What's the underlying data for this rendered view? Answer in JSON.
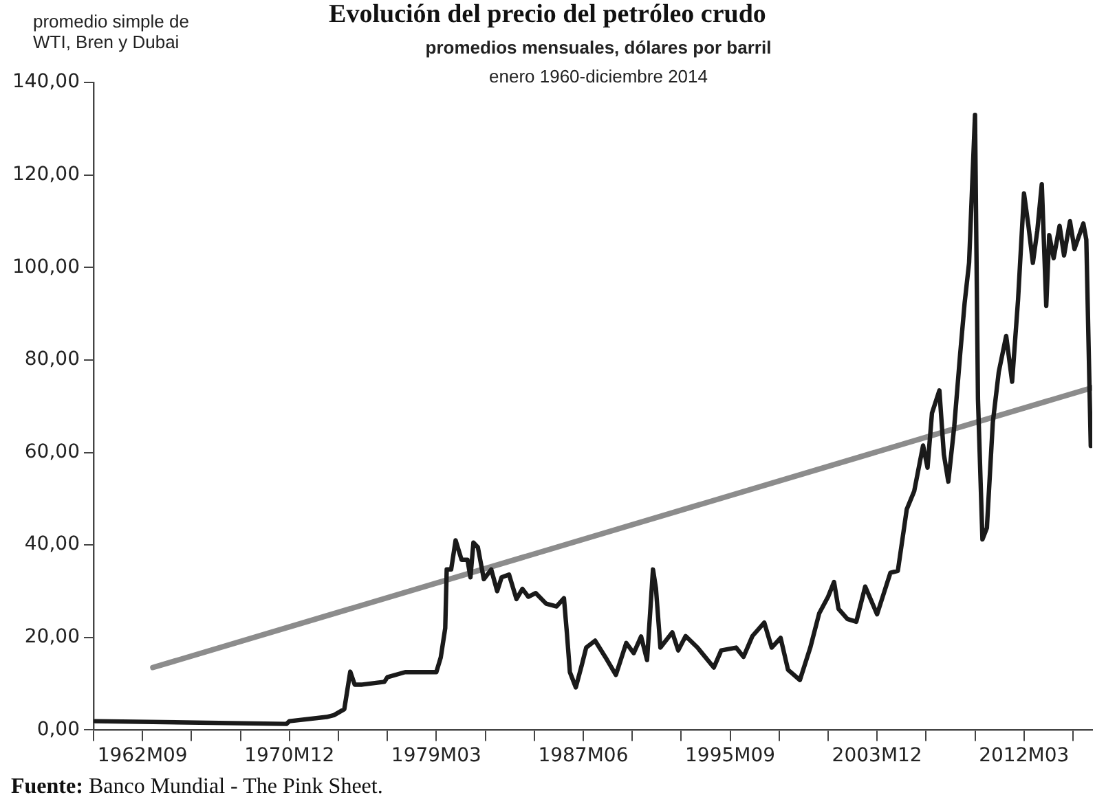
{
  "chart_data": {
    "type": "line",
    "title": "Evolución del precio del petróleo crudo",
    "subtitle": "promedios mensuales, dólares por barril\nenero 1960-diciembre 2014",
    "ylabel": "promedio simple de\nWTI, Bren y Dubai",
    "annotations": [
      "Fuente: Banco Mundial - The Pink Sheet."
    ],
    "series": [
      {
        "color": "#1a1a1a",
        "x": [
          "1960-01",
          "1970-10",
          "1970-12",
          "1973-01",
          "1973-06",
          "1974-01",
          "1974-05",
          "1974-08",
          "1975-01",
          "1976-04",
          "1976-06",
          "1977-06",
          "1979-03",
          "1979-06",
          "1979-09",
          "1979-10",
          "1980-01",
          "1980-04",
          "1980-08",
          "1980-12",
          "1981-02",
          "1981-04",
          "1981-07",
          "1981-11",
          "1982-04",
          "1982-08",
          "1982-11",
          "1983-04",
          "1983-09",
          "1984-01",
          "1984-05",
          "1984-10",
          "1985-05",
          "1985-12",
          "1986-05",
          "1986-07",
          "1986-09",
          "1987-01",
          "1987-05",
          "1987-08",
          "1988-02",
          "1988-09",
          "1989-04",
          "1989-11",
          "1990-04",
          "1990-09",
          "1991-01",
          "1991-05",
          "1991-07",
          "1991-10",
          "1992-06",
          "1992-10",
          "1993-03",
          "1993-11",
          "1994-10",
          "1995-03",
          "1996-01",
          "1996-06",
          "1996-12",
          "1997-08",
          "1998-01",
          "1998-07",
          "1998-12",
          "1999-08",
          "2000-03",
          "2000-09",
          "2001-03",
          "2001-07",
          "2001-10",
          "2002-04",
          "2002-10",
          "2003-04",
          "2003-12",
          "2004-09",
          "2005-02",
          "2005-08",
          "2006-01",
          "2006-07",
          "2006-10",
          "2007-01",
          "2007-06",
          "2007-09",
          "2007-12",
          "2008-04",
          "2008-08",
          "2008-11",
          "2009-02",
          "2009-06",
          "2009-08",
          "2009-11",
          "2010-02",
          "2010-06",
          "2010-10",
          "2011-03",
          "2011-07",
          "2011-11",
          "2012-03",
          "2012-06",
          "2012-09",
          "2012-12",
          "2013-03",
          "2013-06",
          "2013-08",
          "2013-11",
          "2014-03",
          "2014-06",
          "2014-10",
          "2015-01",
          "2015-07",
          "2015-09",
          "2015-12"
        ],
        "values": [
          1.9,
          1.3,
          1.9,
          2.8,
          3.2,
          4.5,
          12.6,
          9.8,
          9.8,
          10.4,
          11.4,
          12.5,
          12.5,
          15.7,
          22,
          34.7,
          34.7,
          41,
          36.8,
          36.8,
          33,
          40.5,
          39.5,
          32.6,
          34.7,
          30,
          33,
          33.6,
          28.3,
          30.5,
          28.8,
          29.6,
          27.3,
          26.7,
          28.5,
          20.9,
          12.5,
          9.2,
          14,
          17.8,
          19.3,
          15.7,
          11.9,
          18.8,
          16.6,
          20.2,
          15.1,
          34.7,
          30.6,
          17.8,
          21.1,
          17.2,
          20.3,
          17.8,
          13.5,
          17.2,
          17.8,
          15.8,
          20.3,
          23.2,
          17.8,
          19.9,
          13,
          10.8,
          17.8,
          25.2,
          28.8,
          32,
          26.2,
          24,
          23.4,
          31,
          25,
          34,
          34.4,
          47.7,
          51.6,
          61.5,
          56.7,
          68.5,
          73.4,
          59.6,
          53.7,
          65.6,
          81.3,
          92.3,
          101,
          133,
          71.5,
          41.2,
          43.7,
          66.5,
          77.4,
          85.2,
          75.3,
          93,
          116,
          109,
          101,
          108,
          118,
          91.7,
          107,
          102,
          109,
          102.6,
          110,
          104,
          109.5,
          106,
          61.4
        ]
      },
      {
        "type": "line",
        "color": "#8c8c8c",
        "x": [
          "1963-04",
          "2016-01"
        ],
        "values": [
          13.5,
          74
        ]
      }
    ],
    "xlim": [
      "1959-12",
      "2016-01"
    ],
    "xticks": [
      {
        "value": "1959-12",
        "label": null
      },
      {
        "value": "1962-09",
        "label": "1962M09"
      },
      {
        "value": "1965-06",
        "label": null
      },
      {
        "value": "1968-03",
        "label": null
      },
      {
        "value": "1970-12",
        "label": "1970M12"
      },
      {
        "value": "1973-09",
        "label": null
      },
      {
        "value": "1976-06",
        "label": null
      },
      {
        "value": "1979-03",
        "label": "1979M03"
      },
      {
        "value": "1981-12",
        "label": null
      },
      {
        "value": "1984-09",
        "label": null
      },
      {
        "value": "1987-06",
        "label": "1987M06"
      },
      {
        "value": "1990-03",
        "label": null
      },
      {
        "value": "1992-12",
        "label": null
      },
      {
        "value": "1995-09",
        "label": "1995M09"
      },
      {
        "value": "1998-06",
        "label": null
      },
      {
        "value": "2001-03",
        "label": null
      },
      {
        "value": "2003-12",
        "label": "2003M12"
      },
      {
        "value": "2006-09",
        "label": null
      },
      {
        "value": "2009-06",
        "label": null
      },
      {
        "value": "2012-03",
        "label": "2012M03"
      },
      {
        "value": "2014-12",
        "label": null
      }
    ],
    "ylim": [
      0,
      140
    ],
    "yticks": [
      {
        "value": 0,
        "label": "0,00"
      },
      {
        "value": 20,
        "label": "20,00"
      },
      {
        "value": 40,
        "label": "40,00"
      },
      {
        "value": 60,
        "label": "60,00"
      },
      {
        "value": 80,
        "label": "80,00"
      },
      {
        "value": 100,
        "label": "100,00"
      },
      {
        "value": 120,
        "label": "120,00"
      },
      {
        "value": 140,
        "label": "140,00"
      }
    ],
    "grid": false,
    "legend": false,
    "marker": "none",
    "line_style": "solid"
  }
}
